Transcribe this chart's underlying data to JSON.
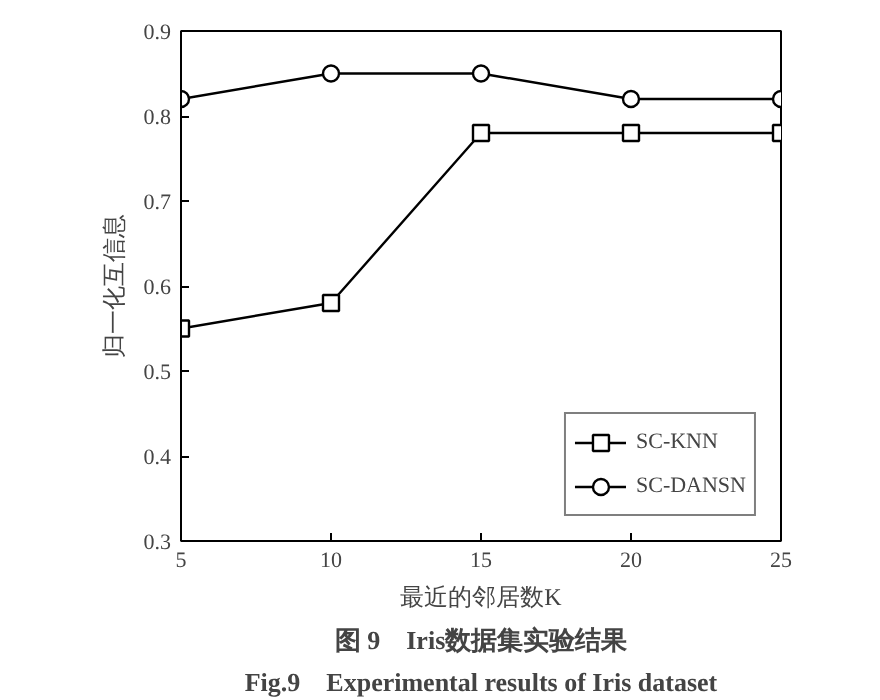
{
  "chart_data": {
    "type": "line",
    "xlabel": "最近的邻居数K",
    "ylabel": "归一化互信息",
    "x": [
      5,
      10,
      15,
      20,
      25
    ],
    "series": [
      {
        "name": "SC-KNN",
        "color": "#000000",
        "marker": "square",
        "values": [
          0.55,
          0.58,
          0.78,
          0.78,
          0.78
        ]
      },
      {
        "name": "SC-DANSN",
        "color": "#000000",
        "marker": "circle",
        "values": [
          0.82,
          0.85,
          0.85,
          0.82,
          0.82
        ]
      }
    ],
    "xlim": [
      5,
      25
    ],
    "xticks": [
      5,
      10,
      15,
      20,
      25
    ],
    "ylim": [
      0.3,
      0.9
    ],
    "yticks": [
      0.3,
      0.4,
      0.5,
      0.6,
      0.7,
      0.8,
      0.9
    ],
    "grid": false,
    "legend": "bottom right",
    "line_style": "solid",
    "annotations": [
      "图 9　Iris数据集实验结果",
      "Fig.9　Experimental results of Iris dataset"
    ]
  }
}
